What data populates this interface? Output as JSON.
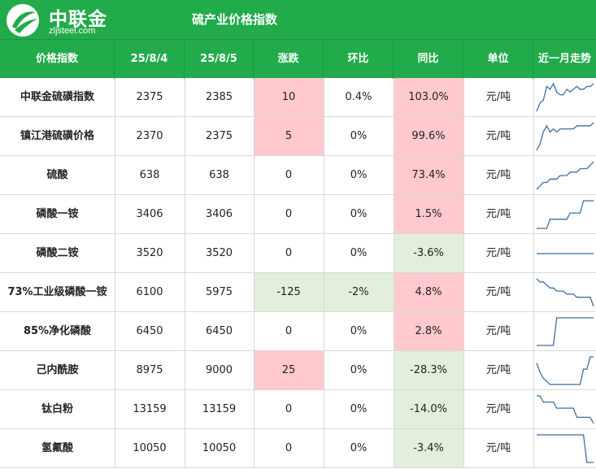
{
  "header": {
    "brand_name": "中联金",
    "brand_site": "zljsteel.com",
    "title": "硫产业价格指数"
  },
  "columns": [
    "价格指数",
    "25/8/4",
    "25/8/5",
    "涨跌",
    "环比",
    "同比",
    "单位",
    "近一月走势"
  ],
  "colors": {
    "banner": "#21ab4a",
    "up_highlight": "#ffc9ce",
    "down_highlight": "#e2efda",
    "sparkline": "#3a6ea8"
  },
  "rows": [
    {
      "name": "中联金硫磺指数",
      "prev": "2375",
      "curr": "2385",
      "change": "10",
      "mom": "0.4%",
      "yoy": "103.0%",
      "unit": "元/吨",
      "change_tone": "up",
      "mom_tone": "none",
      "yoy_tone": "up",
      "trend": [
        1,
        4,
        5,
        10,
        9,
        11,
        8,
        7,
        7,
        9,
        8,
        9,
        10,
        9,
        9,
        10,
        10,
        11
      ]
    },
    {
      "name": "镇江港硫磺价格",
      "prev": "2370",
      "curr": "2375",
      "change": "5",
      "mom": "0%",
      "yoy": "99.6%",
      "unit": "元/吨",
      "change_tone": "up",
      "mom_tone": "none",
      "yoy_tone": "up",
      "trend": [
        1,
        3,
        7,
        9,
        7,
        8,
        7,
        8,
        8,
        8,
        8,
        8,
        9,
        9,
        9,
        9,
        9,
        10
      ]
    },
    {
      "name": "硫酸",
      "prev": "638",
      "curr": "638",
      "change": "0",
      "mom": "0%",
      "yoy": "73.4%",
      "unit": "元/吨",
      "change_tone": "none",
      "mom_tone": "none",
      "yoy_tone": "up",
      "trend": [
        2,
        3,
        4,
        4,
        5,
        5,
        5,
        6,
        6,
        6,
        7,
        7,
        7,
        8,
        8,
        8,
        9,
        10
      ]
    },
    {
      "name": "磷酸一铵",
      "prev": "3406",
      "curr": "3406",
      "change": "0",
      "mom": "0%",
      "yoy": "1.5%",
      "unit": "元/吨",
      "change_tone": "none",
      "mom_tone": "none",
      "yoy_tone": "up",
      "trend": [
        1,
        1,
        1,
        1,
        4,
        4,
        4,
        4,
        4,
        4,
        6,
        6,
        6,
        6,
        10,
        10,
        10,
        10
      ]
    },
    {
      "name": "磷酸二铵",
      "prev": "3520",
      "curr": "3520",
      "change": "0",
      "mom": "0%",
      "yoy": "-3.6%",
      "unit": "元/吨",
      "change_tone": "none",
      "mom_tone": "none",
      "yoy_tone": "down",
      "trend": [
        5,
        5,
        5,
        5,
        5,
        5,
        5,
        5,
        5,
        5,
        5,
        5,
        5,
        5,
        5,
        5,
        5,
        5
      ]
    },
    {
      "name": "73%工业级磷酸一铵",
      "prev": "6100",
      "curr": "5975",
      "change": "-125",
      "mom": "-2%",
      "yoy": "4.8%",
      "unit": "元/吨",
      "change_tone": "down",
      "mom_tone": "down",
      "yoy_tone": "up",
      "trend": [
        10,
        9,
        9,
        8,
        7,
        7,
        6,
        6,
        6,
        5,
        5,
        5,
        4,
        4,
        4,
        4,
        4,
        1
      ]
    },
    {
      "name": "85%净化磷酸",
      "prev": "6450",
      "curr": "6450",
      "change": "0",
      "mom": "0%",
      "yoy": "2.8%",
      "unit": "元/吨",
      "change_tone": "none",
      "mom_tone": "none",
      "yoy_tone": "up",
      "trend": [
        1,
        1,
        1,
        1,
        1,
        1,
        10,
        10,
        10,
        10,
        10,
        10,
        10,
        10,
        10,
        10,
        10,
        10
      ]
    },
    {
      "name": "己内酰胺",
      "prev": "8975",
      "curr": "9000",
      "change": "25",
      "mom": "0%",
      "yoy": "-28.3%",
      "unit": "元/吨",
      "change_tone": "up",
      "mom_tone": "none",
      "yoy_tone": "down",
      "trend": [
        8,
        5,
        3,
        2,
        1,
        1,
        1,
        1,
        1,
        1,
        1,
        1,
        1,
        1,
        6,
        6,
        10,
        10
      ]
    },
    {
      "name": "钛白粉",
      "prev": "13159",
      "curr": "13159",
      "change": "0",
      "mom": "0%",
      "yoy": "-14.0%",
      "unit": "元/吨",
      "change_tone": "none",
      "mom_tone": "none",
      "yoy_tone": "down",
      "trend": [
        10,
        10,
        8,
        8,
        8,
        8,
        6,
        6,
        6,
        6,
        6,
        6,
        3,
        3,
        3,
        3,
        3,
        1
      ]
    },
    {
      "name": "氢氟酸",
      "prev": "10050",
      "curr": "10050",
      "change": "0",
      "mom": "0%",
      "yoy": "-3.4%",
      "unit": "元/吨",
      "change_tone": "none",
      "mom_tone": "none",
      "yoy_tone": "down",
      "trend": [
        10,
        10,
        10,
        10,
        10,
        10,
        10,
        10,
        10,
        10,
        10,
        10,
        10,
        10,
        10,
        1,
        1,
        1
      ]
    }
  ]
}
